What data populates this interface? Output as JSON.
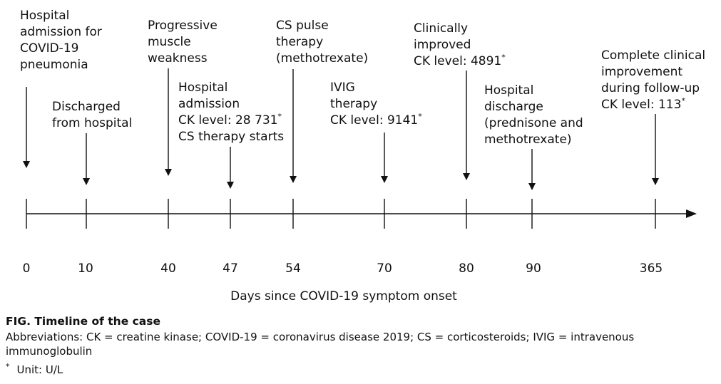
{
  "timeline": {
    "axis_title": "Days since COVID-19 symptom onset",
    "ticks": [
      "0",
      "10",
      "40",
      "47",
      "54",
      "70",
      "80",
      "90",
      "365"
    ],
    "events": [
      {
        "tick": 0,
        "lines": [
          "Hospital",
          "admission for",
          "COVID-19",
          "pneumonia"
        ]
      },
      {
        "tick": 1,
        "lines": [
          "Discharged",
          "from hospital"
        ]
      },
      {
        "tick": 2,
        "lines": [
          "Progressive",
          "muscle",
          "weakness"
        ]
      },
      {
        "tick": 3,
        "lines": [
          "Hospital",
          "admission",
          "CK level: 28 731*",
          "CS therapy starts"
        ]
      },
      {
        "tick": 4,
        "lines": [
          "CS pulse",
          "therapy",
          "(methotrexate)"
        ]
      },
      {
        "tick": 5,
        "lines": [
          "IVIG",
          "therapy",
          "CK level: 9141*"
        ]
      },
      {
        "tick": 6,
        "lines": [
          "Clinically",
          "improved",
          "CK level: 4891*"
        ]
      },
      {
        "tick": 7,
        "lines": [
          "Hospital",
          "discharge",
          "(prednisone and",
          "methotrexate)"
        ]
      },
      {
        "tick": 8,
        "lines": [
          "Complete clinical",
          "improvement",
          "during follow-up",
          "CK level: 113*"
        ]
      }
    ]
  },
  "caption": {
    "title": "FIG. Timeline of the case",
    "abbreviations": "Abbreviations: CK = creatine kinase; COVID-19 = coronavirus disease 2019; CS = corticosteroids; IVIG = intravenous immunoglobulin",
    "unit_mark": "*",
    "unit_text": "Unit: U/L"
  }
}
